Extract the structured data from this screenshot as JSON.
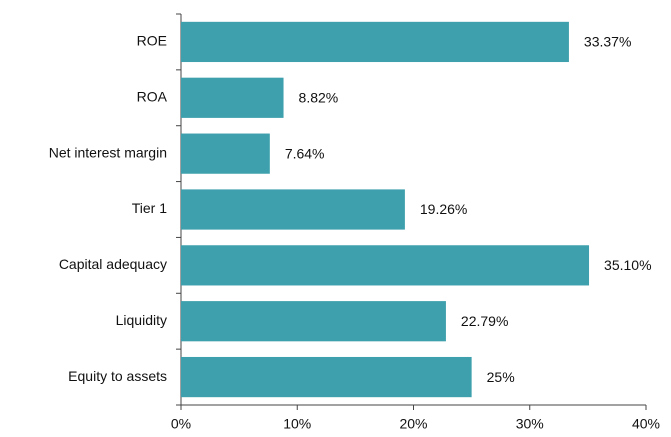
{
  "chart_data": {
    "type": "bar",
    "orientation": "horizontal",
    "categories": [
      "ROE",
      "ROA",
      "Net interest margin",
      "Tier 1",
      "Capital adequacy",
      "Liquidity",
      "Equity to assets"
    ],
    "values": [
      33.37,
      8.82,
      7.64,
      19.26,
      35.1,
      22.79,
      25
    ],
    "value_labels": [
      "33.37%",
      "8.82%",
      "7.64%",
      "19.26%",
      "35.10%",
      "22.79%",
      "25%"
    ],
    "color": "#3fa0ad",
    "xlim": [
      0,
      40
    ],
    "xticks": [
      {
        "value": 0,
        "label": "0%"
      },
      {
        "value": 10,
        "label": "10%"
      },
      {
        "value": 20,
        "label": "20%"
      },
      {
        "value": 30,
        "label": "30%"
      },
      {
        "value": 40,
        "label": "40%"
      }
    ],
    "grid": false
  }
}
